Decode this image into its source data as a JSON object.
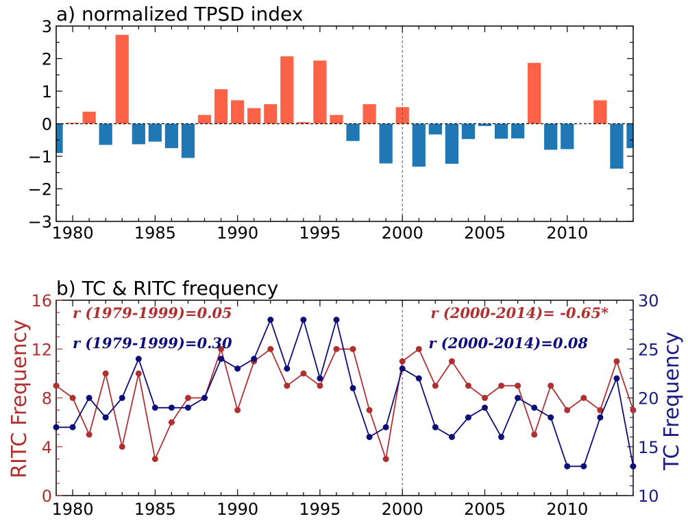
{
  "colors": {
    "positive_bar": "#FF6347",
    "negative_bar": "#1F77B4",
    "ritc": "#B03030",
    "tc": "#0D0D7A",
    "axis_right": "#1A1A80"
  },
  "chart_data": [
    {
      "type": "bar",
      "title": "a) normalized TPSD index",
      "x": [
        1979,
        1980,
        1981,
        1982,
        1983,
        1984,
        1985,
        1986,
        1987,
        1988,
        1989,
        1990,
        1991,
        1992,
        1993,
        1994,
        1995,
        1996,
        1997,
        1998,
        1999,
        2000,
        2001,
        2002,
        2003,
        2004,
        2005,
        2006,
        2007,
        2008,
        2009,
        2010,
        2011,
        2012,
        2013,
        2014
      ],
      "values": [
        -0.9,
        0.03,
        0.37,
        -0.65,
        2.73,
        -0.63,
        -0.55,
        -0.75,
        -1.05,
        0.27,
        1.06,
        0.72,
        0.48,
        0.6,
        2.07,
        0.05,
        1.94,
        0.27,
        -0.53,
        0.6,
        -1.22,
        0.51,
        -1.32,
        -0.33,
        -1.23,
        -0.47,
        -0.07,
        -0.46,
        -0.45,
        1.87,
        -0.8,
        -0.78,
        0.0,
        0.72,
        -1.38,
        -0.75
      ],
      "xlim": [
        1979,
        2014
      ],
      "ylim": [
        -3,
        3
      ],
      "xticks": [
        1980,
        1985,
        1990,
        1995,
        2000,
        2005,
        2010
      ],
      "yticks": [
        -3,
        -2,
        -1,
        0,
        1,
        2,
        3
      ],
      "vline": 2000,
      "zero_line": true,
      "grid": false
    },
    {
      "type": "line",
      "title": "b) TC & RITC frequency",
      "x": [
        1979,
        1980,
        1981,
        1982,
        1983,
        1984,
        1985,
        1986,
        1987,
        1988,
        1989,
        1990,
        1991,
        1992,
        1993,
        1994,
        1995,
        1996,
        1997,
        1998,
        1999,
        2000,
        2001,
        2002,
        2003,
        2004,
        2005,
        2006,
        2007,
        2008,
        2009,
        2010,
        2011,
        2012,
        2013,
        2014
      ],
      "xlim": [
        1979,
        2014
      ],
      "xticks": [
        1980,
        1985,
        1990,
        1995,
        2000,
        2005,
        2010
      ],
      "vline": 2000,
      "grid": false,
      "series": [
        {
          "name": "RITC Frequency",
          "axis": "left",
          "values": [
            9,
            8,
            5,
            10,
            4,
            10,
            3,
            6,
            8,
            8,
            12,
            7,
            11,
            12,
            9,
            10,
            9,
            12,
            12,
            7,
            3,
            11,
            12,
            9,
            11,
            9,
            8,
            9,
            9,
            5,
            9,
            7,
            8,
            7,
            11,
            7
          ]
        },
        {
          "name": "TC Frequency",
          "axis": "right",
          "values": [
            17,
            17,
            20,
            18,
            20,
            24,
            19,
            19,
            19,
            20,
            24,
            23,
            24,
            28,
            23,
            28,
            22,
            28,
            21,
            16,
            17,
            23,
            22,
            17,
            16,
            18,
            19,
            16,
            20,
            19,
            18,
            13,
            13,
            18,
            22,
            13
          ]
        }
      ],
      "ylabel_left": "RITC Frequency",
      "ylim_left": [
        0,
        16
      ],
      "yticks_left": [
        0,
        4,
        8,
        12,
        16
      ],
      "ylabel_right": "TC Frequency",
      "ylim_right": [
        10,
        30
      ],
      "yticks_right": [
        10,
        15,
        20,
        25,
        30
      ],
      "annotations": [
        {
          "text": "r (1979-1999)=0.05",
          "color": "ritc"
        },
        {
          "text": "r (1979-1999)=0.30",
          "color": "tc"
        },
        {
          "text": "r (2000-2014)= -0.65*",
          "color": "ritc"
        },
        {
          "text": "r (2000-2014)=0.08",
          "color": "tc"
        }
      ]
    }
  ]
}
